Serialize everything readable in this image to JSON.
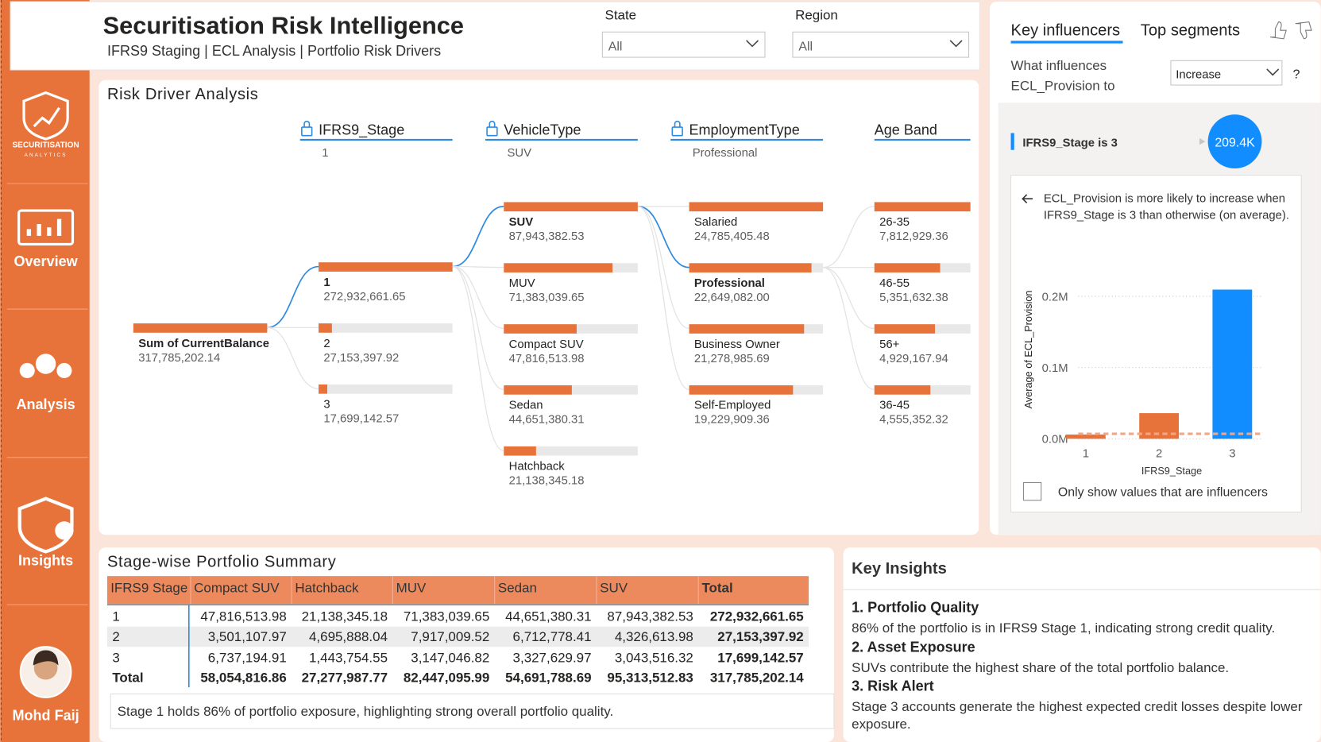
{
  "nav": {
    "logo_line1": "SECURITISATION",
    "logo_line2": "ANALYTICS",
    "items": [
      "Overview",
      "Analysis",
      "Insights"
    ],
    "user": "Mohd Faij"
  },
  "header": {
    "title": "Securitisation Risk Intelligence",
    "subtitle": "IFRS9 Staging | ECL Analysis | Portfolio Risk Drivers",
    "filters": [
      {
        "label": "State",
        "value": "All"
      },
      {
        "label": "Region",
        "value": "All"
      }
    ]
  },
  "decomposition_tree": {
    "title": "Risk Driver Analysis",
    "bar_color": "#e8733a",
    "path_color": "#2d8ae0",
    "root": {
      "label": "Sum of CurrentBalance",
      "value": 317785202.14,
      "value_label": "317,785,202.14"
    },
    "levels": [
      {
        "field": "IFRS9_Stage",
        "selected": "1",
        "nodes": [
          {
            "label": "1",
            "value": 272932661.65,
            "value_label": "272,932,661.65"
          },
          {
            "label": "2",
            "value": 27153397.92,
            "value_label": "27,153,397.92"
          },
          {
            "label": "3",
            "value": 17699142.57,
            "value_label": "17,699,142.57"
          }
        ]
      },
      {
        "field": "VehicleType",
        "selected": "SUV",
        "nodes": [
          {
            "label": "SUV",
            "value": 87943382.53,
            "value_label": "87,943,382.53"
          },
          {
            "label": "MUV",
            "value": 71383039.65,
            "value_label": "71,383,039.65"
          },
          {
            "label": "Compact SUV",
            "value": 47816513.98,
            "value_label": "47,816,513.98"
          },
          {
            "label": "Sedan",
            "value": 44651380.31,
            "value_label": "44,651,380.31"
          },
          {
            "label": "Hatchback",
            "value": 21138345.18,
            "value_label": "21,138,345.18"
          }
        ]
      },
      {
        "field": "EmploymentType",
        "selected": "Professional",
        "nodes": [
          {
            "label": "Salaried",
            "value": 24785405.48,
            "value_label": "24,785,405.48"
          },
          {
            "label": "Professional",
            "value": 22649082.0,
            "value_label": "22,649,082.00"
          },
          {
            "label": "Business Owner",
            "value": 21278985.69,
            "value_label": "21,278,985.69"
          },
          {
            "label": "Self-Employed",
            "value": 19229909.36,
            "value_label": "19,229,909.36"
          }
        ]
      },
      {
        "field": "Age Band",
        "nodes": [
          {
            "label": "26-35",
            "value": 7812929.36,
            "value_label": "7,812,929.36"
          },
          {
            "label": "46-55",
            "value": 5351632.38,
            "value_label": "5,351,632.38"
          },
          {
            "label": "56+",
            "value": 4929167.94,
            "value_label": "4,929,167.94"
          },
          {
            "label": "36-45",
            "value": 4555352.32,
            "value_label": "4,555,352.32"
          }
        ]
      }
    ]
  },
  "key_influencers": {
    "tabs": [
      "Key influencers",
      "Top segments"
    ],
    "question": "What influences ECL_Provision to",
    "direction": "Increase",
    "help": "?",
    "influencer": {
      "label": "IFRS9_Stage is 3",
      "value": 209400,
      "value_label": "209.4K"
    },
    "explanation": "ECL_Provision is more likely to increase when IFRS9_Stage is 3 than otherwise (on average).",
    "checkbox": "Only show values that are influencers",
    "chart_data": {
      "type": "bar",
      "y_label": "Average of ECL_Provision",
      "x_label": "IFRS9_Stage",
      "categories": [
        "1",
        "2",
        "3"
      ],
      "values": [
        6000,
        36000,
        209400
      ],
      "colors": [
        "#e8733a",
        "#e8733a",
        "#118dff"
      ],
      "average_line": {
        "value": 7000,
        "color": "#f4a582"
      },
      "ylim": [
        0,
        250000
      ],
      "yticks": [
        {
          "value": 0,
          "label": "0.0M"
        },
        {
          "value": 100000,
          "label": "0.1M"
        },
        {
          "value": 200000,
          "label": "0.2M"
        }
      ],
      "grid": true
    }
  },
  "table": {
    "title": "Stage-wise Portfolio Summary",
    "columns": [
      "IFRS9 Stage",
      "Compact SUV",
      "Hatchback",
      "MUV",
      "Sedan",
      "SUV",
      "Total"
    ],
    "rows": [
      [
        "1",
        "47,816,513.98",
        "21,138,345.18",
        "71,383,039.65",
        "44,651,380.31",
        "87,943,382.53",
        "272,932,661.65"
      ],
      [
        "2",
        "3,501,107.97",
        "4,695,888.04",
        "7,917,009.52",
        "6,712,778.41",
        "4,326,613.98",
        "27,153,397.92"
      ],
      [
        "3",
        "6,737,194.91",
        "1,443,754.55",
        "3,147,046.82",
        "3,327,629.97",
        "3,043,516.32",
        "17,699,142.57"
      ],
      [
        "Total",
        "58,054,816.86",
        "27,277,987.77",
        "82,447,095.99",
        "54,691,788.69",
        "95,313,512.83",
        "317,785,202.14"
      ]
    ],
    "note": "Stage 1 holds 86% of portfolio exposure, highlighting strong overall portfolio quality."
  },
  "insights": {
    "title": "Key Insights",
    "items": [
      {
        "heading": "1. Portfolio Quality",
        "text": "86% of the portfolio is in IFRS9 Stage 1, indicating strong credit quality."
      },
      {
        "heading": "2. Asset Exposure",
        "text": "SUVs contribute the highest share of the total portfolio balance."
      },
      {
        "heading": "3. Risk Alert",
        "text": "Stage 3 accounts generate the highest expected credit losses despite lower exposure."
      }
    ]
  }
}
